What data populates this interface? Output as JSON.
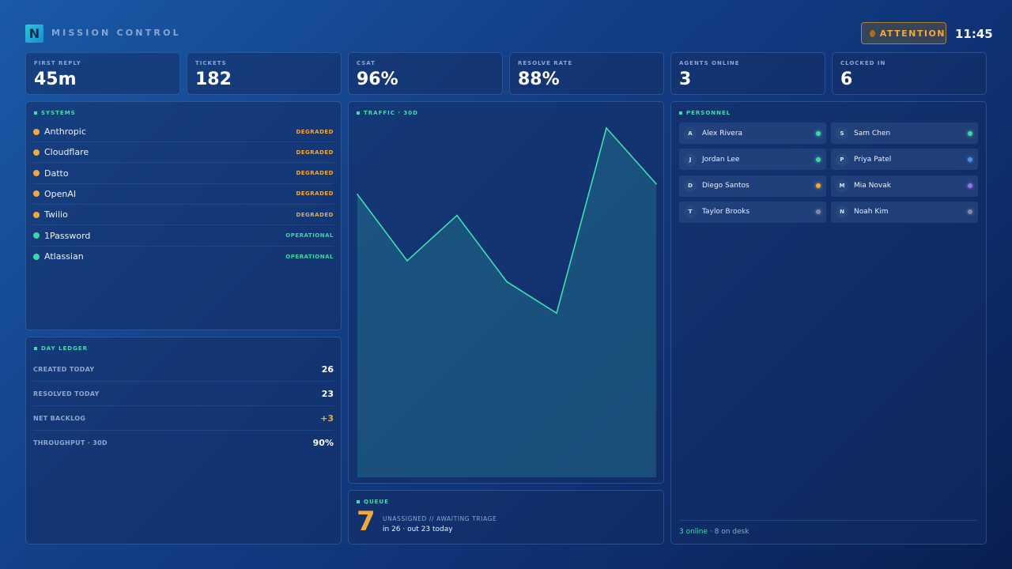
{
  "header": {
    "logo_glyph": "N",
    "title": "MISSION CONTROL",
    "attention_label": "ATTENTION",
    "clock": "11:45"
  },
  "kpis": [
    {
      "label": "FIRST REPLY",
      "value": "45m"
    },
    {
      "label": "TICKETS",
      "value": "182"
    },
    {
      "label": "CSAT",
      "value": "96%"
    },
    {
      "label": "RESOLVE RATE",
      "value": "88%"
    },
    {
      "label": "AGENTS ONLINE",
      "value": "3"
    },
    {
      "label": "CLOCKED IN",
      "value": "6"
    }
  ],
  "systems": {
    "title": "SYSTEMS",
    "items": [
      {
        "name": "Anthropic",
        "status": "DEGRADED",
        "color": "#f0a93a"
      },
      {
        "name": "Cloudflare",
        "status": "DEGRADED",
        "color": "#f0a93a"
      },
      {
        "name": "Datto",
        "status": "DEGRADED",
        "color": "#f0a93a"
      },
      {
        "name": "OpenAI",
        "status": "DEGRADED",
        "color": "#f0a93a"
      },
      {
        "name": "Twilio",
        "status": "DEGRADED",
        "color": "#f0a93a"
      },
      {
        "name": "1Password",
        "status": "OPERATIONAL",
        "color": "#3ed6a4"
      },
      {
        "name": "Atlassian",
        "status": "OPERATIONAL",
        "color": "#3ed6a4"
      }
    ]
  },
  "ledger": {
    "title": "DAY LEDGER",
    "rows": [
      {
        "label": "CREATED TODAY",
        "value": "26",
        "color": "#ffffff"
      },
      {
        "label": "RESOLVED TODAY",
        "value": "23",
        "color": "#ffffff"
      },
      {
        "label": "NET BACKLOG",
        "value": "+3",
        "color": "#f0a93a"
      },
      {
        "label": "THROUGHPUT · 30D",
        "value": "90%",
        "color": "#ffffff"
      }
    ]
  },
  "traffic": {
    "title": "TRAFFIC · 30D"
  },
  "chart_data": {
    "type": "area",
    "x": [
      1,
      2,
      3,
      4,
      5,
      6,
      7
    ],
    "values": [
      81,
      62,
      75,
      56,
      47,
      100,
      84
    ],
    "ylim": [
      0,
      100
    ],
    "grid": false,
    "line_color": "#3ee0b0"
  },
  "queue": {
    "title": "QUEUE",
    "count": "7",
    "caption": "UNASSIGNED // AWAITING TRIAGE",
    "detail": "in 26 · out 23 today"
  },
  "personnel": {
    "title": "PERSONNEL",
    "people": [
      {
        "initial": "A",
        "name": "Alex Rivera",
        "color": "#3ed6a4"
      },
      {
        "initial": "S",
        "name": "Sam Chen",
        "color": "#3ed6a4"
      },
      {
        "initial": "J",
        "name": "Jordan Lee",
        "color": "#3ed6a4"
      },
      {
        "initial": "P",
        "name": "Priya Patel",
        "color": "#4a8ff0"
      },
      {
        "initial": "D",
        "name": "Diego Santos",
        "color": "#f0a93a"
      },
      {
        "initial": "M",
        "name": "Mia Novak",
        "color": "#9a6cf0"
      },
      {
        "initial": "T",
        "name": "Taylor Brooks",
        "color": "#7f8aa0"
      },
      {
        "initial": "N",
        "name": "Noah Kim",
        "color": "#7f8aa0"
      }
    ],
    "footer_online": "3 online",
    "footer_rest": " · 8 on desk"
  }
}
